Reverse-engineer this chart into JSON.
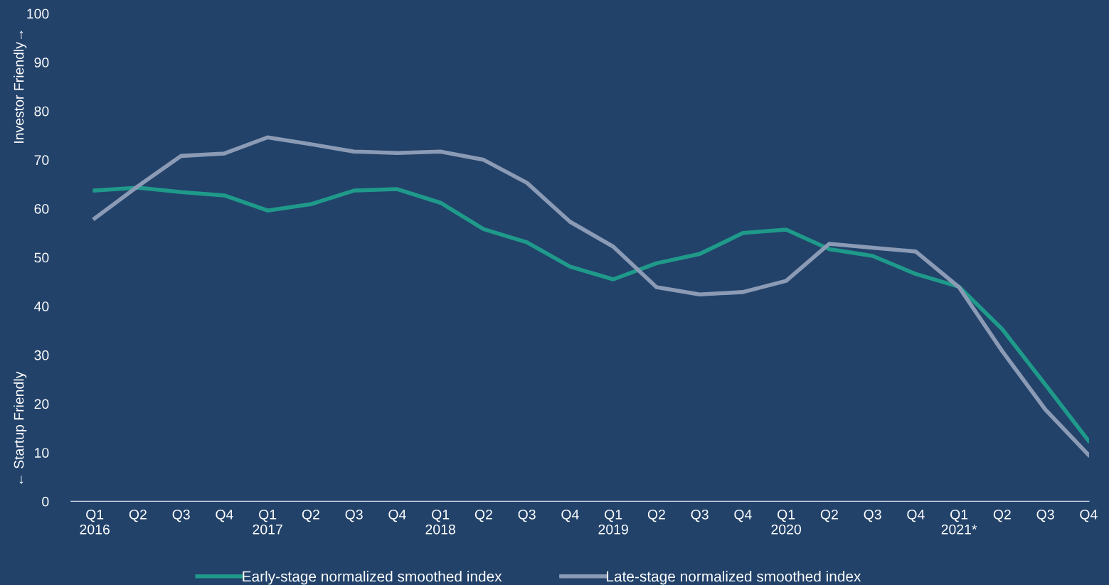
{
  "chart_data": {
    "type": "line",
    "categories": [
      "Q1\n2016",
      "Q2",
      "Q3",
      "Q4",
      "Q1\n2017",
      "Q2",
      "Q3",
      "Q4",
      "Q1\n2018",
      "Q2",
      "Q3",
      "Q4",
      "Q1\n2019",
      "Q2",
      "Q3",
      "Q4",
      "Q1\n2020",
      "Q2",
      "Q3",
      "Q4",
      "Q1\n2021*",
      "Q2",
      "Q3",
      "Q4"
    ],
    "series": [
      {
        "name": "Early-stage normalized smoothed index",
        "color": "#1f9a8a",
        "values": [
          63.7,
          64.3,
          63.4,
          62.7,
          59.6,
          60.9,
          63.7,
          64.0,
          61.2,
          55.8,
          53.1,
          48.1,
          45.5,
          48.8,
          50.7,
          55.0,
          55.7,
          51.7,
          50.3,
          46.6,
          44.0,
          35.3,
          23.9,
          12.4
        ]
      },
      {
        "name": "Late-stage normalized smoothed index",
        "color": "#8c9bb5",
        "values": [
          58.0,
          64.6,
          70.8,
          71.3,
          74.6,
          73.2,
          71.7,
          71.4,
          71.7,
          70.0,
          65.3,
          57.3,
          52.2,
          43.9,
          42.4,
          42.9,
          45.2,
          52.8,
          52.0,
          51.2,
          43.9,
          30.8,
          18.8,
          9.5
        ]
      }
    ],
    "ylim": [
      0,
      100
    ],
    "yticks": [
      0,
      10,
      20,
      30,
      40,
      50,
      60,
      70,
      80,
      90,
      100
    ],
    "annotations": [
      "← Startup Friendly",
      "Investor Friendly→"
    ],
    "legend": "bottom",
    "grid": false,
    "marker": "none",
    "line_style": "solid"
  }
}
